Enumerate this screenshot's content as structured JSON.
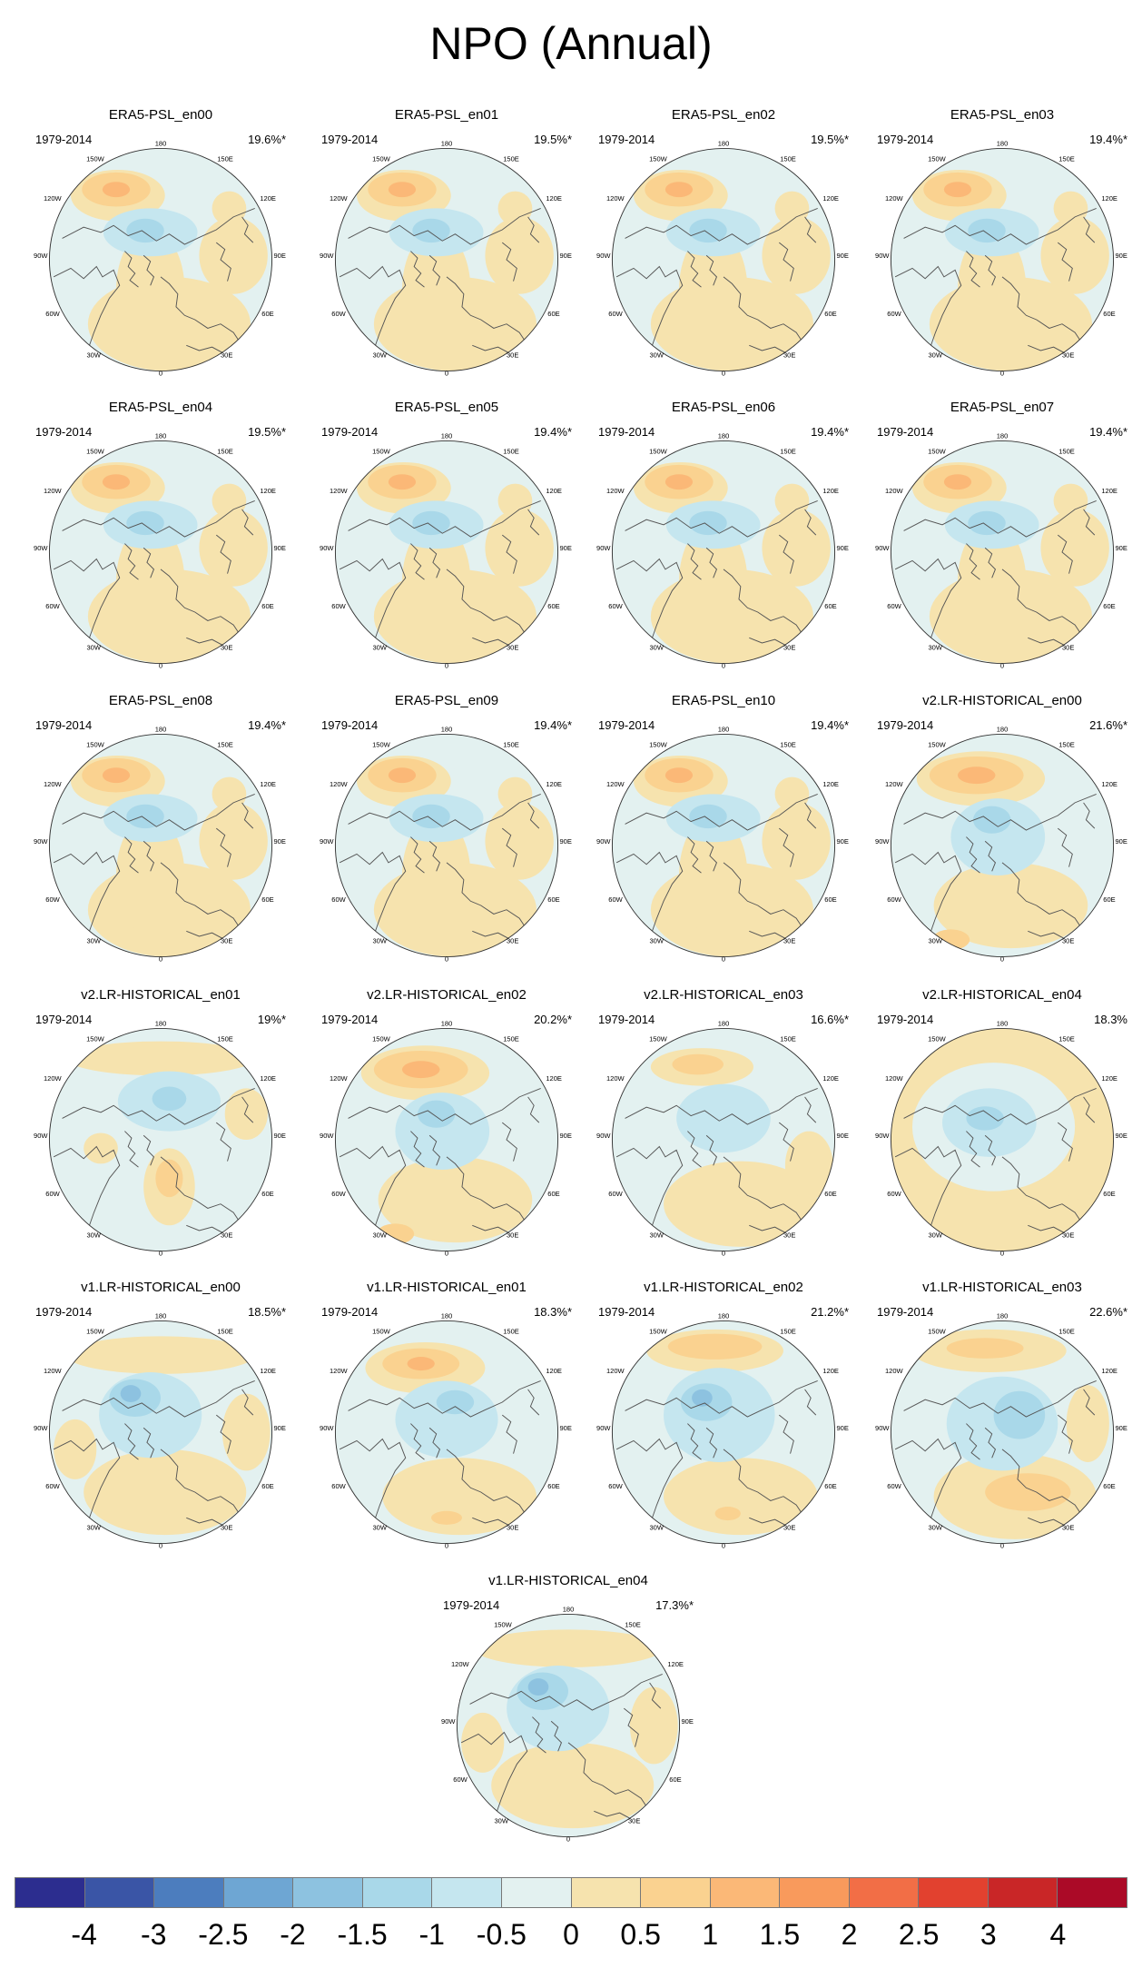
{
  "title": "NPO (Annual)",
  "period": "1979-2014",
  "lon_labels": [
    "180",
    "150E",
    "120E",
    "90E",
    "60E",
    "30E",
    "0",
    "30W",
    "60W",
    "90W",
    "120W",
    "150W"
  ],
  "colors": {
    "land_outline": "#555555",
    "frame": "#333333",
    "background_anomaly": "#e3f1f0"
  },
  "panels": [
    {
      "name": "ERA5-PSL_en00",
      "pct": "19.6%*",
      "style": "era"
    },
    {
      "name": "ERA5-PSL_en01",
      "pct": "19.5%*",
      "style": "era"
    },
    {
      "name": "ERA5-PSL_en02",
      "pct": "19.5%*",
      "style": "era"
    },
    {
      "name": "ERA5-PSL_en03",
      "pct": "19.4%*",
      "style": "era"
    },
    {
      "name": "ERA5-PSL_en04",
      "pct": "19.5%*",
      "style": "era"
    },
    {
      "name": "ERA5-PSL_en05",
      "pct": "19.4%*",
      "style": "era"
    },
    {
      "name": "ERA5-PSL_en06",
      "pct": "19.4%*",
      "style": "era"
    },
    {
      "name": "ERA5-PSL_en07",
      "pct": "19.4%*",
      "style": "era"
    },
    {
      "name": "ERA5-PSL_en08",
      "pct": "19.4%*",
      "style": "era"
    },
    {
      "name": "ERA5-PSL_en09",
      "pct": "19.4%*",
      "style": "era"
    },
    {
      "name": "ERA5-PSL_en10",
      "pct": "19.4%*",
      "style": "era"
    },
    {
      "name": "v2.LR-HISTORICAL_en00",
      "pct": "21.6%*",
      "style": "v2a"
    },
    {
      "name": "v2.LR-HISTORICAL_en01",
      "pct": "19%*",
      "style": "v2b"
    },
    {
      "name": "v2.LR-HISTORICAL_en02",
      "pct": "20.2%*",
      "style": "v2a"
    },
    {
      "name": "v2.LR-HISTORICAL_en03",
      "pct": "16.6%*",
      "style": "v2c"
    },
    {
      "name": "v2.LR-HISTORICAL_en04",
      "pct": "18.3%",
      "style": "v2d"
    },
    {
      "name": "v1.LR-HISTORICAL_en00",
      "pct": "18.5%*",
      "style": "v1a"
    },
    {
      "name": "v1.LR-HISTORICAL_en01",
      "pct": "18.3%*",
      "style": "v1b"
    },
    {
      "name": "v1.LR-HISTORICAL_en02",
      "pct": "21.2%*",
      "style": "v1c"
    },
    {
      "name": "v1.LR-HISTORICAL_en03",
      "pct": "22.6%*",
      "style": "v1d"
    },
    {
      "name": "v1.LR-HISTORICAL_en04",
      "pct": "17.3%*",
      "style": "v1a"
    }
  ],
  "colorbar": {
    "colors": [
      "#2c2d8f",
      "#3a55a6",
      "#4c7dbe",
      "#6ea6d3",
      "#8dc2e0",
      "#a9d8e9",
      "#c5e6ef",
      "#e3f1f0",
      "#f6e3ae",
      "#fad290",
      "#fbb877",
      "#f99a5c",
      "#f26e46",
      "#e2412f",
      "#c92627",
      "#ab0a27"
    ],
    "labels": [
      "-4",
      "-3",
      "-2.5",
      "-2",
      "-1.5",
      "-1",
      "-0.5",
      "0",
      "0.5",
      "1",
      "1.5",
      "2",
      "2.5",
      "3",
      "4"
    ]
  }
}
